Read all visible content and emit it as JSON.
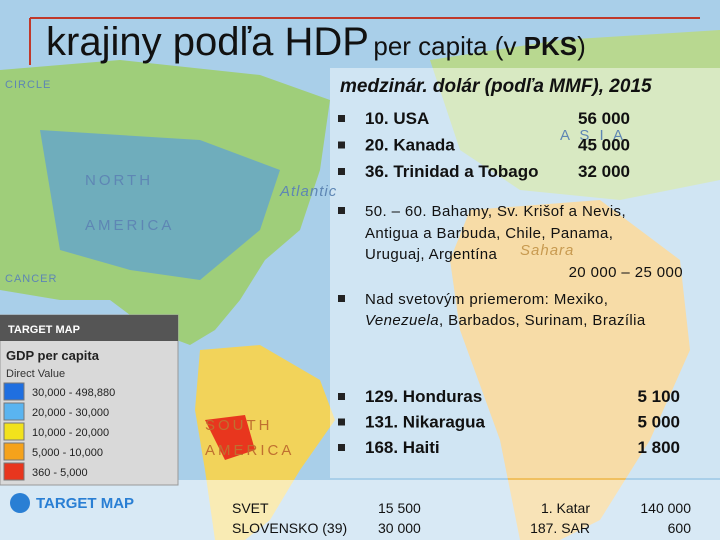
{
  "title": {
    "main": "krajiny podľa HDP",
    "rest_1": "per capita (v ",
    "rest_bold": "PKS",
    "rest_2": ")"
  },
  "subtitle": "medzinár. dolár (podľa MMF), 2015",
  "top_list": [
    {
      "label": "10. USA",
      "value": "56 000"
    },
    {
      "label": "20. Kanada",
      "value": "45 000"
    },
    {
      "label": "36. Trinidad a Tobago",
      "value": "32 000"
    }
  ],
  "group": {
    "lines": [
      "50. – 60. Bahamy, Sv. Krišof a Nevis,",
      "Antigua a Barbuda, Chile, Panama,",
      "Uruguaj, Argentína"
    ],
    "value": "20 000 – 25 000"
  },
  "above_average": {
    "line_1": "Nad svetovým priemerom: Mexiko,",
    "italic": "Venezuela",
    "line_2_rest": ", Barbados, Surinam, Brazília"
  },
  "bottom_list": [
    {
      "label": "129. Honduras",
      "value": "5 100"
    },
    {
      "label": "131. Nikaragua",
      "value": "5 000"
    },
    {
      "label": "168. Haiti",
      "value": "1 800"
    }
  ],
  "footer": [
    {
      "label": "SVET",
      "value": "15 500",
      "label_2": "1. Katar",
      "value_2": "140 000"
    },
    {
      "label": "SLOVENSKO (39)",
      "value": "30 000",
      "label_2": "187. SAR",
      "value_2": "600"
    }
  ],
  "map_labels": [
    "NORTH",
    "AMERICA",
    "A S I A",
    "Atlantic",
    "CANCER",
    "CIRCLE",
    "Sahara",
    "SOUTH",
    "AMERICA"
  ],
  "legend": {
    "brand": "TARGET MAP",
    "title": "GDP per capita",
    "subtitle": "Direct Value",
    "rows": [
      {
        "color": "#1f6fe0",
        "range": "30,000  -  498,880"
      },
      {
        "color": "#5ab4f0",
        "range": "20,000  -  30,000"
      },
      {
        "color": "#f2e21c",
        "range": "10,000  -  20,000"
      },
      {
        "color": "#f5a21b",
        "range": "5,000  -  10,000"
      },
      {
        "color": "#e8361e",
        "range": "360  -  5,000"
      }
    ],
    "logo": "TARGET MAP"
  }
}
